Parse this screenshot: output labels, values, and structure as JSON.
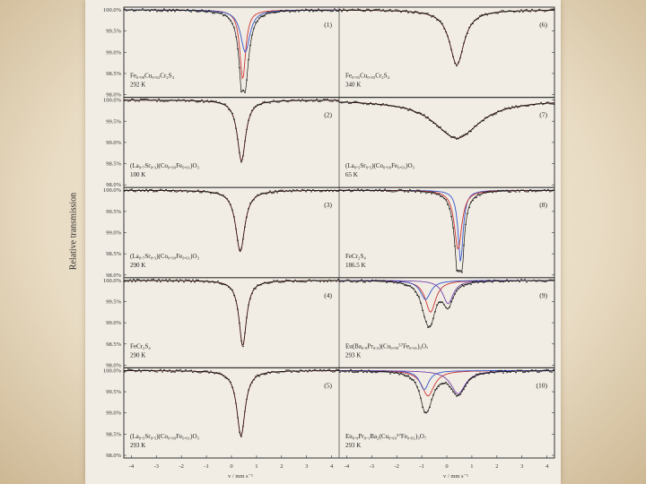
{
  "figure": {
    "y_axis_label": "Relative transmission",
    "x_axis_label_left": "v / mm s⁻¹",
    "x_axis_label_right": "v / mm s⁻¹"
  },
  "chart_data": {
    "type": "line",
    "title": "",
    "ylabel": "Relative transmission",
    "xlabel": "v / mm s⁻¹",
    "xlim": [
      -4.3,
      4.3
    ],
    "ylim": [
      98.0,
      100.0
    ],
    "y_ticks": [
      "100.0%",
      "99.5%",
      "99.0%",
      "98.5%",
      "98.0%"
    ],
    "x_ticks": [
      "-4",
      "-3",
      "-2",
      "-1",
      "0",
      "1",
      "2",
      "3",
      "4"
    ],
    "grid": false,
    "panels": [
      {
        "num": "(1)",
        "line1": "Fe₀.₉₈Cu₀.₀₂Cr₂S₄",
        "line2": "292 K",
        "col": 0,
        "row": 0,
        "lines": [
          {
            "color": "#cc3333",
            "comps": [
              [
                0.45,
                0.14,
                1.65
              ]
            ]
          },
          {
            "color": "#3355cc",
            "comps": [
              [
                0.55,
                0.22,
                1.0
              ]
            ]
          }
        ]
      },
      {
        "num": "(2)",
        "line1": "(La₀.₇Sr₀.₃)(Co₀.₉₉Fe₀.₀₁)O₃",
        "line2": "100 K",
        "col": 0,
        "row": 1,
        "lines": [
          {
            "color": "#cc3333",
            "comps": [
              [
                0.4,
                0.2,
                1.45
              ]
            ]
          }
        ]
      },
      {
        "num": "(3)",
        "line1": "(La₀.₇Sr₀.₃)(Co₀.₉₉Fe₀.₀₁)O₃",
        "line2": "290 K",
        "col": 0,
        "row": 2,
        "lines": [
          {
            "color": "#cc3333",
            "comps": [
              [
                0.35,
                0.22,
                1.45
              ]
            ]
          }
        ]
      },
      {
        "num": "(4)",
        "line1": "FeCr₂S₄",
        "line2": "290 K",
        "col": 0,
        "row": 3,
        "lines": [
          {
            "color": "#cc3333",
            "comps": [
              [
                0.45,
                0.18,
                1.55
              ]
            ]
          }
        ]
      },
      {
        "num": "(5)",
        "line1": "(La₀.₅Sr₀.₅)(Co₀.₉₉Fe₀.₀₁)O₃",
        "line2": "293 K",
        "col": 0,
        "row": 4,
        "lines": [
          {
            "color": "#cc3333",
            "comps": [
              [
                0.38,
                0.2,
                1.55
              ]
            ]
          }
        ]
      },
      {
        "num": "(6)",
        "line1": "Fe₀.₉₅Cu₀.₀₅Cr₂S₄",
        "line2": "340 K",
        "col": 1,
        "row": 0,
        "lines": [
          {
            "color": "#cc3333",
            "comps": [
              [
                0.4,
                0.35,
                1.3
              ]
            ]
          }
        ]
      },
      {
        "num": "(7)",
        "line1": "(La₀.₅Sr₀.₅)(Co₀.₉₉Fe₀.₀₁)O₃",
        "line2": "65 K",
        "col": 1,
        "row": 1,
        "lines": [
          {
            "color": "#cc3333",
            "comps": [
              [
                0.4,
                1.1,
                0.9
              ]
            ]
          }
        ]
      },
      {
        "num": "(8)",
        "line1": "FeCr₂S₄",
        "line2": "186.5 K",
        "col": 1,
        "row": 2,
        "lines": [
          {
            "color": "#3355cc",
            "comps": [
              [
                0.55,
                0.12,
                1.7
              ]
            ]
          },
          {
            "color": "#cc3333",
            "comps": [
              [
                0.45,
                0.18,
                1.4
              ]
            ]
          }
        ]
      },
      {
        "num": "(9)",
        "line1": "Eu(Ba₀.₈Pr₀.₂)(Cu₀.₉₉⁵⁷Fe₀.₀₁)₃O₇",
        "line2": "293 K",
        "col": 1,
        "row": 3,
        "lines": [
          {
            "color": "#cc3333",
            "comps": [
              [
                -0.65,
                0.25,
                0.75
              ]
            ]
          },
          {
            "color": "#3355cc",
            "comps": [
              [
                -0.85,
                0.25,
                0.45
              ]
            ]
          },
          {
            "color": "#7744aa",
            "comps": [
              [
                0.05,
                0.25,
                0.55
              ]
            ]
          }
        ]
      },
      {
        "num": "(10)",
        "line1": "Eu₀.₉Pr₀.₁Ba₂(Cu₀.₉₉⁵⁷Fe₀.₀₁)₃O₇",
        "line2": "293 K",
        "col": 1,
        "row": 4,
        "lines": [
          {
            "color": "#cc3333",
            "comps": [
              [
                -0.75,
                0.3,
                0.6
              ]
            ]
          },
          {
            "color": "#3355cc",
            "comps": [
              [
                -0.9,
                0.22,
                0.45
              ]
            ]
          },
          {
            "color": "#7744aa",
            "comps": [
              [
                0.45,
                0.35,
                0.55
              ]
            ]
          }
        ]
      }
    ]
  }
}
